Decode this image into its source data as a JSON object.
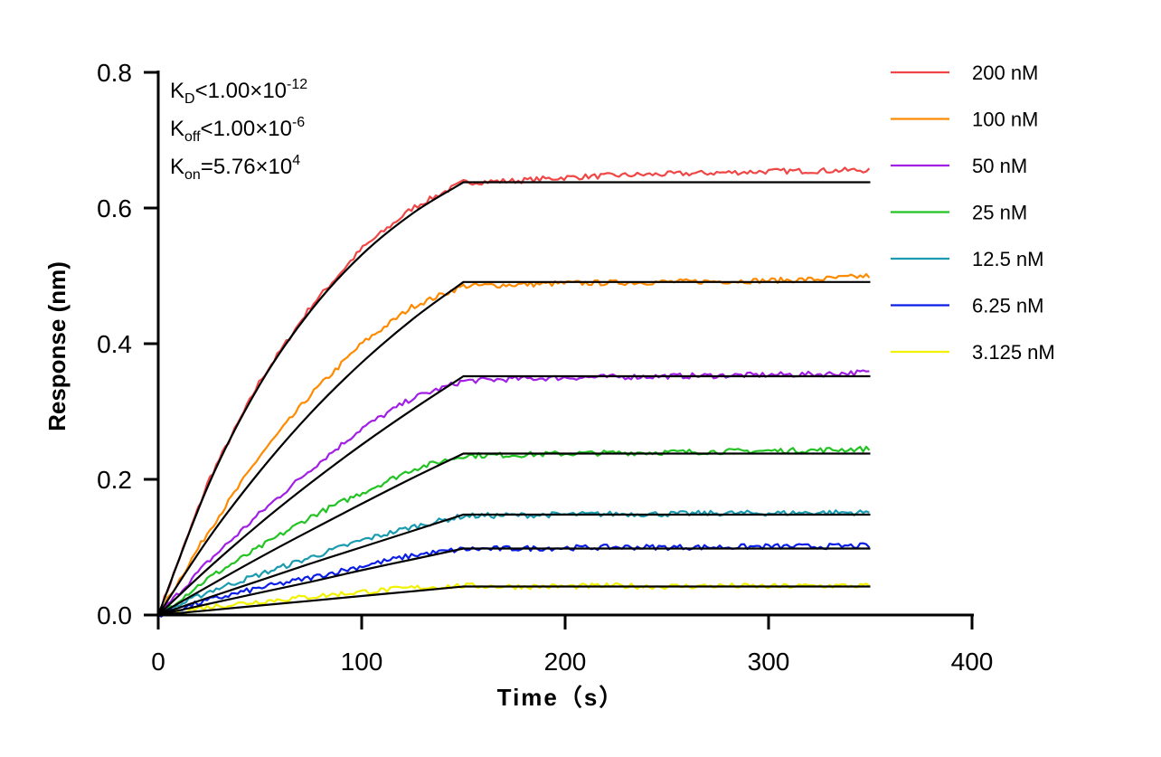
{
  "chart_data": {
    "type": "line",
    "xlabel": "Time（s）",
    "ylabel": "Response (nm)",
    "xlim": [
      0,
      400
    ],
    "ylim": [
      0,
      0.8
    ],
    "xticks": [
      "0",
      "100",
      "200",
      "300",
      "400"
    ],
    "yticks": [
      "0.0",
      "0.2",
      "0.4",
      "0.6",
      "0.8"
    ],
    "grid": false,
    "legend_position": "right",
    "annotations": {
      "kd": {
        "k": "K",
        "sub": "D",
        "rel": "<1.00×10",
        "exp": "-12"
      },
      "koff": {
        "k": "K",
        "sub": "off",
        "rel": "<1.00×10",
        "exp": "-6"
      },
      "kon": {
        "k": "K",
        "sub": "on",
        "rel": "=5.76×10",
        "exp": "4"
      }
    },
    "x": [
      0,
      25,
      50,
      75,
      100,
      125,
      150,
      175,
      200,
      225,
      250,
      275,
      300,
      325,
      350
    ],
    "fit_color": "#000000",
    "series": [
      {
        "name": "200 nM",
        "color": "#f04646",
        "values": [
          0,
          0.2,
          0.345,
          0.455,
          0.54,
          0.6,
          0.638,
          0.64,
          0.645,
          0.648,
          0.65,
          0.652,
          0.654,
          0.655,
          0.656
        ],
        "fit": [
          0,
          0.194,
          0.34,
          0.449,
          0.531,
          0.592,
          0.638,
          0.638,
          0.638,
          0.638,
          0.638,
          0.638,
          0.638,
          0.638,
          0.638
        ]
      },
      {
        "name": "100 nM",
        "color": "#ff8a00",
        "values": [
          0,
          0.125,
          0.235,
          0.325,
          0.4,
          0.455,
          0.485,
          0.487,
          0.489,
          0.49,
          0.491,
          0.492,
          0.493,
          0.495,
          0.5
        ],
        "fit": [
          0,
          0.114,
          0.212,
          0.298,
          0.372,
          0.436,
          0.491,
          0.491,
          0.491,
          0.491,
          0.491,
          0.491,
          0.491,
          0.491,
          0.491
        ]
      },
      {
        "name": "50 nM",
        "color": "#a21fe6",
        "values": [
          0,
          0.08,
          0.15,
          0.215,
          0.275,
          0.32,
          0.345,
          0.348,
          0.35,
          0.351,
          0.352,
          0.353,
          0.354,
          0.355,
          0.358
        ],
        "fit": [
          0,
          0.07,
          0.135,
          0.195,
          0.251,
          0.303,
          0.352,
          0.352,
          0.352,
          0.352,
          0.352,
          0.352,
          0.352,
          0.352,
          0.352
        ]
      },
      {
        "name": "25 nM",
        "color": "#22c322",
        "values": [
          0,
          0.055,
          0.1,
          0.145,
          0.18,
          0.215,
          0.235,
          0.236,
          0.238,
          0.239,
          0.24,
          0.241,
          0.242,
          0.243,
          0.245
        ],
        "fit": [
          0,
          0.043,
          0.085,
          0.125,
          0.164,
          0.202,
          0.238,
          0.238,
          0.238,
          0.238,
          0.238,
          0.238,
          0.238,
          0.238,
          0.238
        ]
      },
      {
        "name": "12.5 nM",
        "color": "#1a9bb0",
        "values": [
          0,
          0.035,
          0.06,
          0.085,
          0.11,
          0.13,
          0.146,
          0.147,
          0.148,
          0.149,
          0.149,
          0.15,
          0.15,
          0.151,
          0.151
        ],
        "fit": [
          0,
          0.026,
          0.051,
          0.076,
          0.1,
          0.124,
          0.148,
          0.148,
          0.148,
          0.148,
          0.148,
          0.148,
          0.148,
          0.148,
          0.148
        ]
      },
      {
        "name": "6.25 nM",
        "color": "#0a1ee6",
        "values": [
          0,
          0.022,
          0.04,
          0.055,
          0.072,
          0.088,
          0.097,
          0.098,
          0.099,
          0.1,
          0.1,
          0.1,
          0.101,
          0.101,
          0.102
        ],
        "fit": [
          0,
          0.0165,
          0.033,
          0.049,
          0.066,
          0.082,
          0.098,
          0.098,
          0.098,
          0.098,
          0.098,
          0.098,
          0.098,
          0.098,
          0.098
        ]
      },
      {
        "name": "3.125 nM",
        "color": "#f2f200",
        "values": [
          0,
          0.012,
          0.02,
          0.027,
          0.034,
          0.04,
          0.043,
          0.042,
          0.042,
          0.043,
          0.042,
          0.043,
          0.042,
          0.043,
          0.043
        ],
        "fit": [
          0,
          0.007,
          0.014,
          0.021,
          0.028,
          0.035,
          0.042,
          0.042,
          0.042,
          0.042,
          0.042,
          0.042,
          0.042,
          0.042,
          0.042
        ]
      }
    ]
  }
}
